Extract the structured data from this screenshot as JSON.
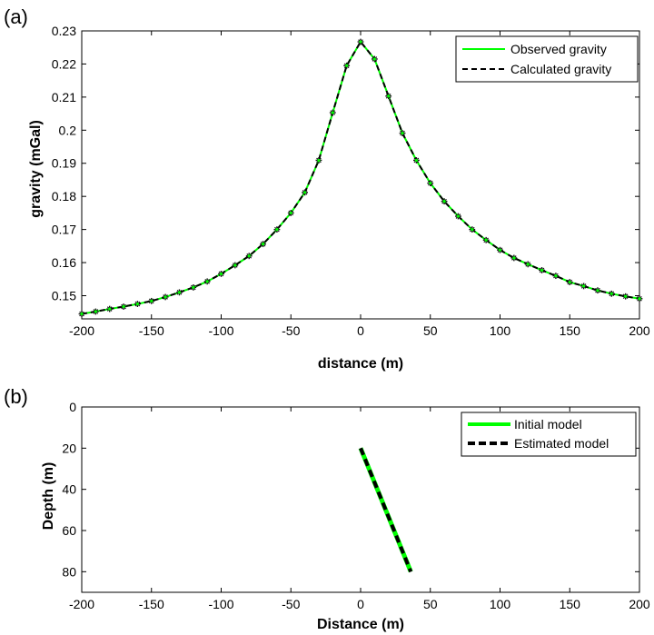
{
  "chart_data": [
    {
      "panel_label": "(a)",
      "type": "line",
      "xlabel": "distance (m)",
      "ylabel": "gravity (mGal)",
      "xlim": [
        -200,
        200
      ],
      "ylim": [
        0.143,
        0.23
      ],
      "xticks": [
        -200,
        -150,
        -100,
        -50,
        0,
        50,
        100,
        150,
        200
      ],
      "yticks": [
        0.15,
        0.16,
        0.17,
        0.18,
        0.19,
        0.2,
        0.21,
        0.22,
        0.23
      ],
      "legend_position": "top-right",
      "legend": [
        "Observed gravity",
        "Calculated gravity"
      ],
      "colors": {
        "observed": "#00ff00",
        "calculated": "#000000",
        "marker": "#1a8a1a"
      },
      "x": [
        -200,
        -190,
        -180,
        -170,
        -160,
        -150,
        -140,
        -130,
        -120,
        -110,
        -100,
        -90,
        -80,
        -70,
        -60,
        -50,
        -40,
        -30,
        -20,
        -10,
        0,
        10,
        20,
        30,
        40,
        50,
        60,
        70,
        80,
        90,
        100,
        110,
        120,
        130,
        140,
        150,
        160,
        170,
        180,
        190,
        200
      ],
      "series": [
        {
          "name": "Observed gravity",
          "values": [
            0.1445,
            0.1452,
            0.146,
            0.1467,
            0.1475,
            0.1484,
            0.1496,
            0.151,
            0.1525,
            0.1543,
            0.1566,
            0.1592,
            0.162,
            0.1656,
            0.17,
            0.175,
            0.1812,
            0.1909,
            0.2053,
            0.2195,
            0.2267,
            0.2215,
            0.2103,
            0.1991,
            0.1909,
            0.184,
            0.1785,
            0.174,
            0.17,
            0.1668,
            0.1638,
            0.1614,
            0.1595,
            0.1577,
            0.156,
            0.1541,
            0.1529,
            0.1516,
            0.1506,
            0.1498,
            0.1491
          ]
        },
        {
          "name": "Calculated gravity",
          "values": [
            0.1445,
            0.1452,
            0.146,
            0.1467,
            0.1475,
            0.1484,
            0.1496,
            0.151,
            0.1525,
            0.1543,
            0.1566,
            0.1592,
            0.162,
            0.1656,
            0.17,
            0.175,
            0.1812,
            0.1909,
            0.2053,
            0.2195,
            0.2267,
            0.2215,
            0.2103,
            0.1991,
            0.1909,
            0.184,
            0.1785,
            0.174,
            0.17,
            0.1668,
            0.1638,
            0.1614,
            0.1595,
            0.1577,
            0.156,
            0.1541,
            0.1529,
            0.1516,
            0.1506,
            0.1498,
            0.1491
          ]
        }
      ]
    },
    {
      "panel_label": "(b)",
      "type": "line",
      "xlabel": "Distance (m)",
      "ylabel": "Depth (m)",
      "xlim": [
        -200,
        200
      ],
      "ylim": [
        0,
        90
      ],
      "y_reversed": true,
      "xticks": [
        -200,
        -150,
        -100,
        -50,
        0,
        50,
        100,
        150,
        200
      ],
      "yticks": [
        0,
        20,
        40,
        60,
        80
      ],
      "legend_position": "top-right",
      "legend": [
        "Initial model",
        "Estimated model"
      ],
      "colors": {
        "initial": "#00ff00",
        "estimated": "#000000"
      },
      "series": [
        {
          "name": "Initial model",
          "x": [
            0,
            36
          ],
          "y": [
            20,
            80
          ]
        },
        {
          "name": "Estimated model",
          "x": [
            0,
            36
          ],
          "y": [
            20,
            80
          ]
        }
      ]
    }
  ]
}
